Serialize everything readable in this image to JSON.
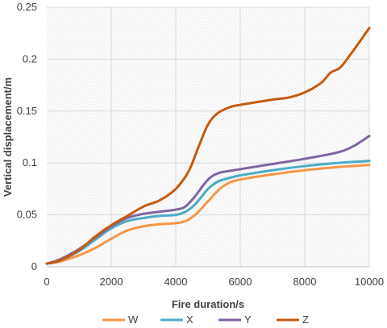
{
  "chart_data": {
    "type": "line",
    "title": "",
    "xlabel": "Fire duration/s",
    "ylabel": "Vertical displacement/m",
    "xlim": [
      0,
      10000
    ],
    "ylim": [
      0,
      0.25
    ],
    "x_ticks": [
      "0",
      "2000",
      "4000",
      "6000",
      "8000",
      "10000"
    ],
    "y_ticks": [
      "0",
      "0.05",
      "0.1",
      "0.15",
      "0.2",
      "0.25"
    ],
    "grid": true,
    "legend_position": "bottom",
    "series": [
      {
        "name": "W",
        "color": "#F79646",
        "points": [
          [
            0,
            0.003
          ],
          [
            400,
            0.005
          ],
          [
            1000,
            0.011
          ],
          [
            1500,
            0.018
          ],
          [
            2000,
            0.027
          ],
          [
            2500,
            0.035
          ],
          [
            3000,
            0.039
          ],
          [
            3500,
            0.041
          ],
          [
            4000,
            0.042
          ],
          [
            4300,
            0.044
          ],
          [
            4600,
            0.05
          ],
          [
            5000,
            0.063
          ],
          [
            5300,
            0.073
          ],
          [
            5600,
            0.08
          ],
          [
            6000,
            0.084
          ],
          [
            7000,
            0.089
          ],
          [
            8000,
            0.093
          ],
          [
            9000,
            0.096
          ],
          [
            10000,
            0.098
          ]
        ]
      },
      {
        "name": "X",
        "color": "#4BACC6",
        "points": [
          [
            0,
            0.003
          ],
          [
            400,
            0.006
          ],
          [
            1000,
            0.015
          ],
          [
            1500,
            0.026
          ],
          [
            2000,
            0.037
          ],
          [
            2500,
            0.044
          ],
          [
            3000,
            0.047
          ],
          [
            3500,
            0.049
          ],
          [
            4000,
            0.05
          ],
          [
            4300,
            0.053
          ],
          [
            4600,
            0.06
          ],
          [
            5000,
            0.075
          ],
          [
            5300,
            0.082
          ],
          [
            5600,
            0.085
          ],
          [
            6000,
            0.088
          ],
          [
            7000,
            0.093
          ],
          [
            8000,
            0.097
          ],
          [
            9000,
            0.1
          ],
          [
            10000,
            0.102
          ]
        ]
      },
      {
        "name": "Y",
        "color": "#8064A2",
        "points": [
          [
            0,
            0.003
          ],
          [
            400,
            0.007
          ],
          [
            1000,
            0.017
          ],
          [
            1500,
            0.028
          ],
          [
            2000,
            0.039
          ],
          [
            2500,
            0.047
          ],
          [
            3000,
            0.051
          ],
          [
            3500,
            0.053
          ],
          [
            4000,
            0.055
          ],
          [
            4300,
            0.058
          ],
          [
            4600,
            0.068
          ],
          [
            5000,
            0.084
          ],
          [
            5300,
            0.09
          ],
          [
            5600,
            0.092
          ],
          [
            6000,
            0.094
          ],
          [
            7000,
            0.099
          ],
          [
            8000,
            0.104
          ],
          [
            9000,
            0.11
          ],
          [
            9500,
            0.116
          ],
          [
            10000,
            0.126
          ]
        ]
      },
      {
        "name": "Z",
        "color": "#C55A11",
        "points": [
          [
            0,
            0.003
          ],
          [
            400,
            0.006
          ],
          [
            1000,
            0.016
          ],
          [
            1500,
            0.029
          ],
          [
            2000,
            0.04
          ],
          [
            2500,
            0.049
          ],
          [
            3000,
            0.058
          ],
          [
            3500,
            0.064
          ],
          [
            4000,
            0.075
          ],
          [
            4400,
            0.092
          ],
          [
            4700,
            0.115
          ],
          [
            5000,
            0.137
          ],
          [
            5300,
            0.148
          ],
          [
            5700,
            0.154
          ],
          [
            6000,
            0.156
          ],
          [
            7000,
            0.161
          ],
          [
            7500,
            0.163
          ],
          [
            8000,
            0.168
          ],
          [
            8500,
            0.177
          ],
          [
            8800,
            0.187
          ],
          [
            9100,
            0.192
          ],
          [
            9500,
            0.208
          ],
          [
            10000,
            0.23
          ]
        ]
      }
    ]
  }
}
